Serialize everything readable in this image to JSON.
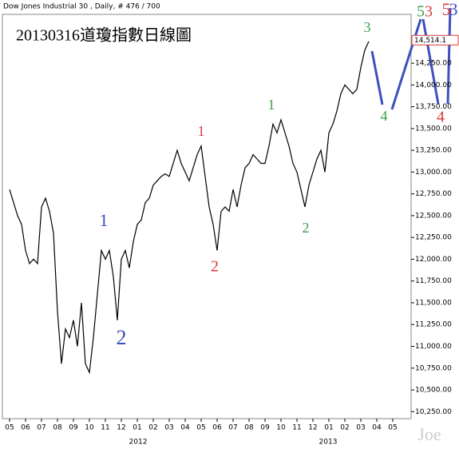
{
  "chart_data": {
    "type": "line",
    "header": "Dow Jones Industrial 30 , Daily, # 476 / 700",
    "title": "20130316道瓊指數日線圖",
    "watermark": "Joe",
    "years": [
      "2012",
      "2013"
    ],
    "color": "#000000",
    "categories": [
      "05",
      null,
      null,
      null,
      "06",
      null,
      null,
      null,
      "07",
      null,
      null,
      null,
      "08",
      null,
      null,
      null,
      "09",
      null,
      null,
      null,
      "10",
      null,
      null,
      null,
      "11",
      null,
      null,
      null,
      "12",
      null,
      null,
      null,
      "01",
      null,
      null,
      null,
      "02",
      null,
      null,
      null,
      "03",
      null,
      null,
      null,
      "04",
      null,
      null,
      null,
      "05",
      null,
      null,
      null,
      "06",
      null,
      null,
      null,
      "07",
      null,
      null,
      null,
      "08",
      null,
      null,
      null,
      "09",
      null,
      null,
      null,
      "10",
      null,
      null,
      null,
      "11",
      null,
      null,
      null,
      "12",
      null,
      null,
      null,
      "01",
      null,
      null,
      null,
      "02",
      null,
      null,
      null,
      "03",
      null,
      null,
      null,
      "04",
      null,
      null,
      null,
      "05",
      null,
      null,
      null
    ],
    "values": [
      12800,
      12650,
      12500,
      12400,
      12100,
      11950,
      12000,
      11950,
      12600,
      12700,
      12550,
      12300,
      11400,
      10800,
      11200,
      11100,
      11300,
      11000,
      11500,
      10800,
      10700,
      11100,
      11600,
      12100,
      12000,
      12100,
      11800,
      11300,
      12000,
      12100,
      11900,
      12200,
      12400,
      12450,
      12650,
      12700,
      12850,
      12900,
      12950,
      12980,
      12950,
      13100,
      13250,
      13100,
      13000,
      12900,
      13050,
      13200,
      13300,
      12950,
      12600,
      12400,
      12100,
      12550,
      12600,
      12550,
      12800,
      12600,
      12850,
      13050,
      13100,
      13200,
      13150,
      13100,
      13100,
      13300,
      13550,
      13450,
      13600,
      13450,
      13300,
      13100,
      13000,
      12800,
      12600,
      12850,
      13000,
      13150,
      13250,
      13000,
      13450,
      13550,
      13700,
      13900,
      14000,
      13950,
      13900,
      13950,
      14200,
      14400,
      14500,
      null,
      null,
      null,
      null,
      null,
      null,
      null,
      null,
      null
    ],
    "last_price": {
      "value": 14514.1,
      "label": "14,514.1"
    },
    "ylim": [
      10170,
      14810
    ],
    "yticks": [
      {
        "value": 10250,
        "label": "10,250.00"
      },
      {
        "value": 10500,
        "label": "10,500.00"
      },
      {
        "value": 10750,
        "label": "10,750.00"
      },
      {
        "value": 11000,
        "label": "11,000.00"
      },
      {
        "value": 11250,
        "label": "11,250.00"
      },
      {
        "value": 11500,
        "label": "11,500.00"
      },
      {
        "value": 11750,
        "label": "11,750.00"
      },
      {
        "value": 12000,
        "label": "12,000.00"
      },
      {
        "value": 12250,
        "label": "12,250.00"
      },
      {
        "value": 12500,
        "label": "12,500.00"
      },
      {
        "value": 12750,
        "label": "12,750.00"
      },
      {
        "value": 13000,
        "label": "13,000.00"
      },
      {
        "value": 13250,
        "label": "13,250.00"
      },
      {
        "value": 13500,
        "label": "13,500.00"
      },
      {
        "value": 13750,
        "label": "13,750.00"
      },
      {
        "value": 14000,
        "label": "14,000.00"
      },
      {
        "value": 14250,
        "label": "14,250.00"
      }
    ],
    "annotations": [
      {
        "text": "1",
        "color": "#3f4fbf"
      },
      {
        "text": "2",
        "color": "#3f4fbf"
      },
      {
        "text": "1",
        "color": "#d83a3a"
      },
      {
        "text": "2",
        "color": "#d83a3a"
      },
      {
        "text": "1",
        "color": "#3aa04a"
      },
      {
        "text": "2",
        "color": "#3aa04a"
      },
      {
        "text": "3",
        "color": "#3aa04a"
      },
      {
        "text": "4",
        "color": "#3aa04a"
      },
      {
        "text": "4",
        "color": "#d83a3a"
      },
      {
        "text": "5",
        "color": "#3aa04a"
      },
      {
        "text": "3",
        "color": "#d83a3a"
      },
      {
        "text": "5",
        "color": "#d83a3a"
      },
      {
        "text": "3",
        "color": "#3f4fbf"
      }
    ]
  }
}
